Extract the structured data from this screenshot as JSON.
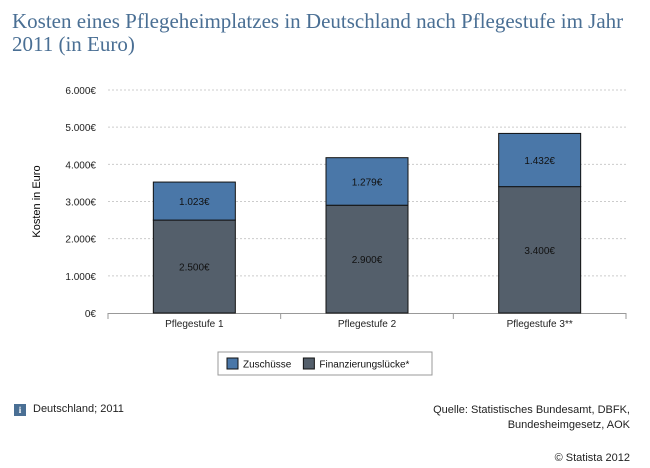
{
  "title": "Kosten eines Pflegeheimplatzes in Deutschland nach Pflegestufe im Jahr 2011 (in Euro)",
  "info": {
    "icon": "info-icon",
    "icon_glyph": "i",
    "text": "Deutschland; 2011"
  },
  "source": {
    "line1": "Quelle: Statistisches Bundesamt, DBFK,",
    "line2": "Bundesheimgesetz, AOK"
  },
  "copyright": "© Statista 2012",
  "chart_data": {
    "type": "bar",
    "stacked": true,
    "categories": [
      "Pflegestufe 1",
      "Pflegestufe 2",
      "Pflegestufe 3**"
    ],
    "series": [
      {
        "name": "Finanzierungslücke*",
        "values": [
          2500,
          2900,
          3400
        ],
        "labels": [
          "2.500€",
          "2.900€",
          "3.400€"
        ],
        "color": "#545f6b"
      },
      {
        "name": "Zuschüsse",
        "values": [
          1023,
          1279,
          1432
        ],
        "labels": [
          "1.023€",
          "1.279€",
          "1.432€"
        ],
        "color": "#4a77a8"
      }
    ],
    "legend_order": [
      "Zuschüsse",
      "Finanzierungslücke*"
    ],
    "legend_position": "bottom-center",
    "ylabel": "Kosten in Euro",
    "xlabel": "",
    "ylim": [
      0,
      6000
    ],
    "yticks": [
      0,
      1000,
      2000,
      3000,
      4000,
      5000,
      6000
    ],
    "ytick_labels": [
      "0€",
      "1.000€",
      "2.000€",
      "3.000€",
      "4.000€",
      "5.000€",
      "6.000€"
    ],
    "grid": true,
    "grid_color": "#cccccc",
    "axis_color": "#999999"
  }
}
